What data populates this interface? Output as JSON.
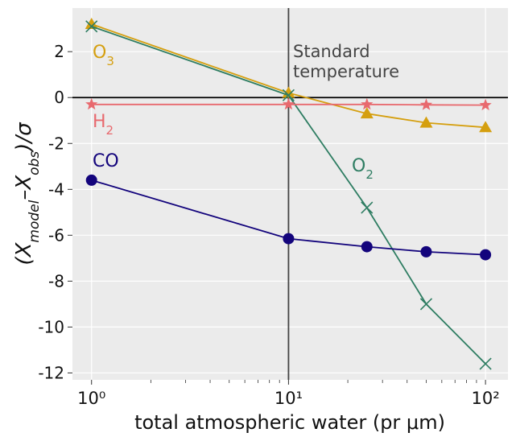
{
  "chart_data": {
    "type": "line",
    "xscale": "log",
    "xlim": [
      0.8,
      130
    ],
    "ylim": [
      -12.3,
      3.9
    ],
    "grid": true,
    "xlabel_html": "total atmospheric water (pr μm)",
    "xlabel": "total atmospheric water (pr μm)",
    "ylabel": "(X_model − X_obs)/σ",
    "x_ticks": [
      {
        "value": 1,
        "label": "10⁰"
      },
      {
        "value": 10,
        "label": "10¹"
      },
      {
        "value": 100,
        "label": "10²"
      }
    ],
    "y_ticks": [
      {
        "value": 2,
        "label": "2"
      },
      {
        "value": 0,
        "label": "0"
      },
      {
        "value": -2,
        "label": "-2"
      },
      {
        "value": -4,
        "label": "-4"
      },
      {
        "value": -6,
        "label": "-6"
      },
      {
        "value": -8,
        "label": "-8"
      },
      {
        "value": -10,
        "label": "-10"
      },
      {
        "value": -12,
        "label": "-12"
      }
    ],
    "reference_line": {
      "x": 10,
      "label_lines": [
        "Standard",
        "temperature"
      ]
    },
    "zero_line": 0,
    "series": [
      {
        "name": "O₃",
        "marker": "triangle",
        "color": "#d59f0f",
        "x": [
          1,
          10,
          25,
          50,
          100
        ],
        "y": [
          3.2,
          0.2,
          -0.7,
          -1.1,
          -1.3
        ]
      },
      {
        "name": "O₂",
        "marker": "x",
        "color": "#2e7d62",
        "x": [
          1,
          10,
          25,
          50,
          100
        ],
        "y": [
          3.1,
          0.1,
          -4.8,
          -9.0,
          -11.6
        ]
      },
      {
        "name": "H₂",
        "marker": "star",
        "color": "#e8696e",
        "x": [
          1,
          10,
          25,
          50,
          100
        ],
        "y": [
          -0.3,
          -0.3,
          -0.3,
          -0.32,
          -0.33
        ]
      },
      {
        "name": "CO",
        "marker": "circle",
        "color": "#13047c",
        "x": [
          1,
          10,
          25,
          50,
          100
        ],
        "y": [
          -3.6,
          -6.15,
          -6.5,
          -6.72,
          -6.85
        ]
      }
    ]
  }
}
